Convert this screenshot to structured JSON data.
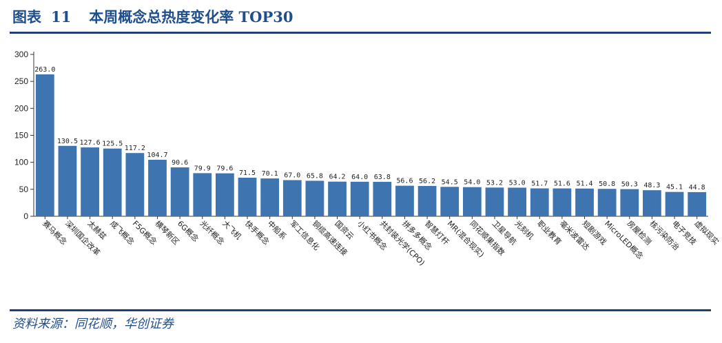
{
  "header": {
    "figure_label": "图表",
    "figure_number": "11",
    "title": "本周概念总热度变化率 TOP30"
  },
  "footer": {
    "source": "资料来源：同花顺，华创证券"
  },
  "colors": {
    "bar": "#3e74b0",
    "title": "#1f4e8c",
    "rule": "#1f3f75",
    "axis": "#333333"
  },
  "chart_data": {
    "type": "bar",
    "title": "",
    "xlabel": "",
    "ylabel": "",
    "ylim": [
      0,
      300
    ],
    "yticks": [
      0,
      50,
      100,
      150,
      200,
      250,
      300
    ],
    "grid": false,
    "legend": "none",
    "categories": [
      "赛马概念",
      "深圳国企改革",
      "太赫兹",
      "成飞概念",
      "F5G概念",
      "横琴新区",
      "6G概念",
      "光纤概念",
      "大飞机",
      "快手概念",
      "中船系",
      "军工信息化",
      "铜缆高速连接",
      "国资云",
      "小红书概念",
      "共封装光学(CPO)",
      "拼多多概念",
      "智慧灯杆",
      "MR(混合现实)",
      "同花顺果指数",
      "卫星导航",
      "光刻机",
      "职业教育",
      "毫米波雷达",
      "短剧游戏",
      "MicroLED概念",
      "房屋检测",
      "核污染防治",
      "电子竞技",
      "虚拟现实"
    ],
    "values": [
      263.0,
      130.5,
      127.6,
      125.5,
      117.2,
      104.7,
      90.6,
      79.9,
      79.6,
      71.5,
      70.1,
      67.0,
      65.8,
      64.2,
      64.0,
      63.8,
      56.6,
      56.2,
      54.5,
      54.0,
      53.2,
      53.0,
      51.7,
      51.6,
      51.4,
      50.8,
      50.3,
      48.3,
      45.1,
      44.8
    ],
    "value_labels": [
      "263.0",
      "130.5",
      "127.6",
      "125.5",
      "117.2",
      "104.7",
      "90.6",
      "79.9",
      "79.6",
      "71.5",
      "70.1",
      "67.0",
      "65.8",
      "64.2",
      "64.0",
      "63.8",
      "56.6",
      "56.2",
      "54.5",
      "54.0",
      "53.2",
      "53.0",
      "51.7",
      "51.6",
      "51.4",
      "50.8",
      "50.3",
      "48.3",
      "45.1",
      "44.8"
    ]
  }
}
